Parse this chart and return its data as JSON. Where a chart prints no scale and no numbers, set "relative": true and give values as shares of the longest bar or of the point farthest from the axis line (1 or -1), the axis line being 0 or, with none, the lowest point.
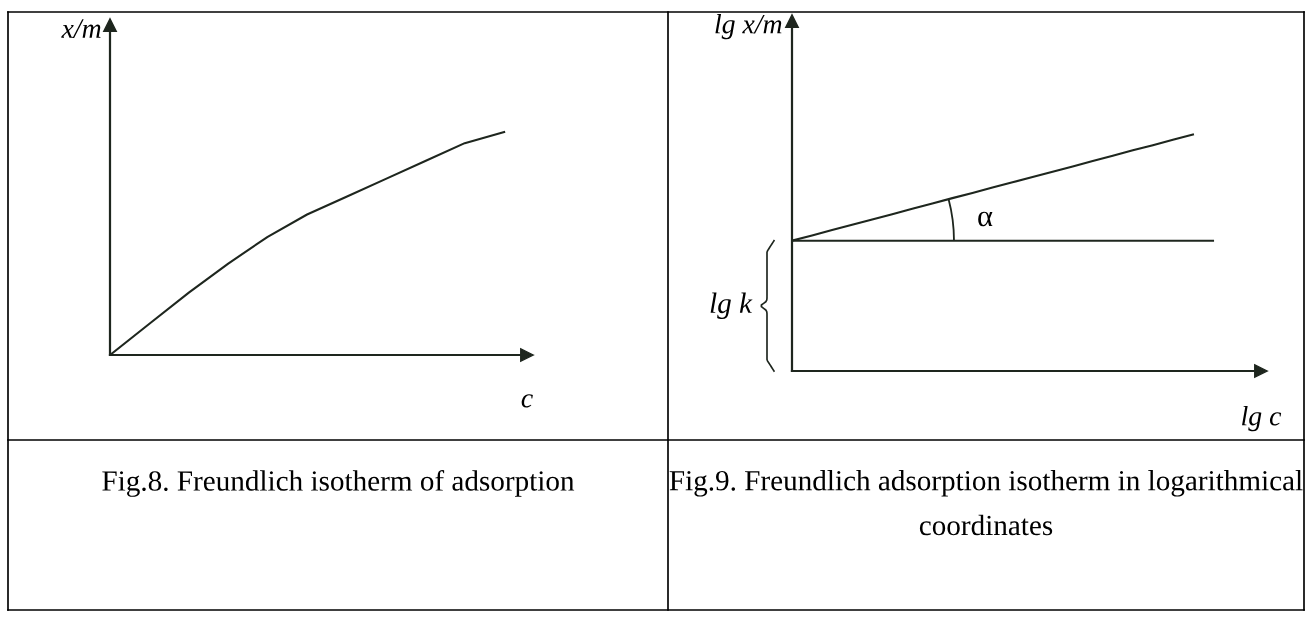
{
  "chart_data": [
    {
      "type": "line",
      "relative": true,
      "marker": "none",
      "line_style": "solid",
      "xlabel": "c",
      "ylabel": "x/m",
      "categories": [
        null,
        null,
        null,
        null,
        null,
        null,
        null,
        null,
        null,
        null,
        null
      ],
      "series": [
        {
          "color": "#1e261e",
          "values": [
            0,
            0.14,
            0.28,
            0.41,
            0.53,
            0.63,
            0.71,
            0.79,
            0.87,
            0.95,
            1
          ]
        }
      ],
      "annotations": [
        "Fig.8. Freundlich isotherm of adsorption"
      ]
    },
    {
      "type": "line",
      "relative": true,
      "marker": "none",
      "line_style": "solid",
      "xlabel": "lg c",
      "ylabel": "lg x/m",
      "categories": [
        null,
        null,
        null,
        null,
        null,
        null,
        null,
        null,
        null,
        null,
        null,
        null,
        null,
        null,
        null,
        null,
        null,
        null,
        null,
        null,
        null,
        null
      ],
      "series": [
        {
          "color": "#1e261e",
          "values": [
            0.551,
            0.573,
            0.596,
            0.618,
            0.641,
            0.663,
            0.686,
            0.708,
            0.731,
            0.753,
            0.776,
            0.798,
            0.82,
            0.843,
            0.865,
            0.888,
            0.91,
            0.933,
            0.955,
            0.978,
            1,
            null
          ]
        },
        {
          "color": "#1e261e",
          "values": [
            0.551,
            0.551,
            0.551,
            0.551,
            0.551,
            0.551,
            0.551,
            0.551,
            0.551,
            0.551,
            0.551,
            0.551,
            0.551,
            0.551,
            0.551,
            0.551,
            0.551,
            0.551,
            0.551,
            0.551,
            0.551,
            0.551
          ]
        }
      ],
      "annotations": [
        "α",
        "lg k",
        "Fig.9. Freundlich adsorption isotherm in logarithmical coordinates"
      ]
    }
  ]
}
